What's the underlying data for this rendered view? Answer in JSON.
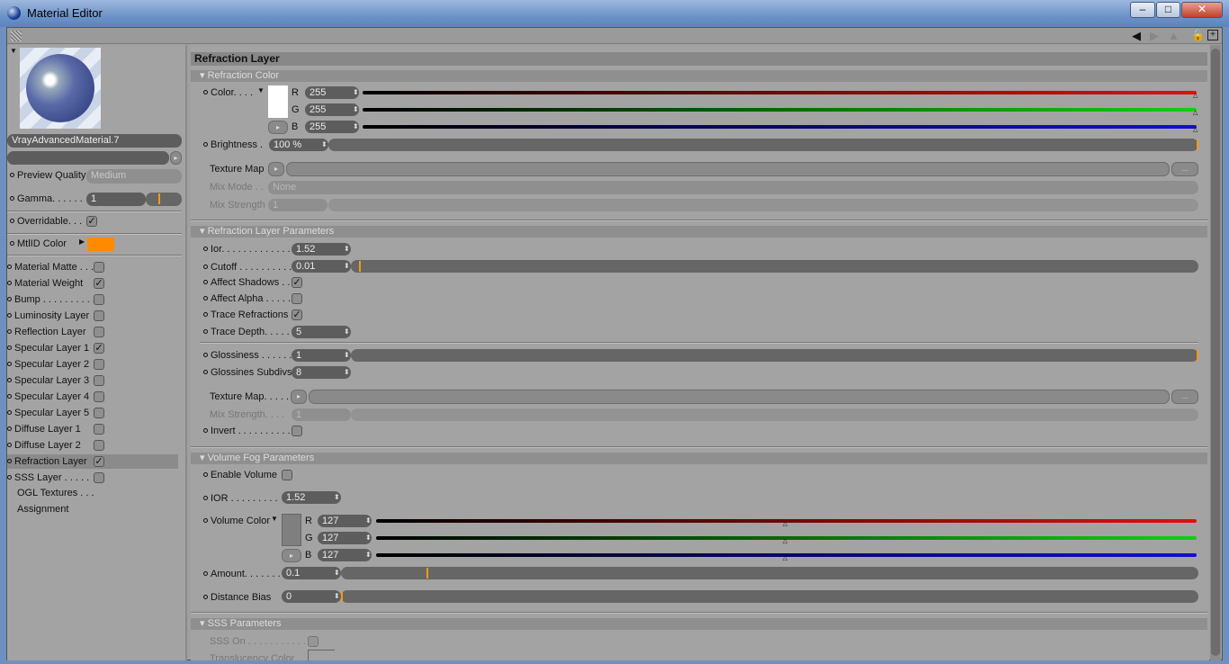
{
  "window": {
    "title": "Material Editor",
    "minimize": "–",
    "maximize": "□",
    "close": "✕"
  },
  "left": {
    "material_name": "VrayAdvancedMaterial.7",
    "preview_quality_label": "Preview Quality",
    "preview_quality_value": "Medium",
    "gamma_label": "Gamma. . . . . . ",
    "gamma_value": "1",
    "gamma_level": 0.5,
    "overridable_label": "Overridable. . . ",
    "overridable_checked": true,
    "mtlid_label": "MtlID Color",
    "mtlid_color": "#ff8a00",
    "channels": [
      {
        "label": "Material Matte . . .",
        "checked": false
      },
      {
        "label": "Material Weight",
        "checked": true
      },
      {
        "label": "Bump . . . . . . . . . . .",
        "checked": false
      },
      {
        "label": "Luminosity Layer",
        "checked": false
      },
      {
        "label": "Reflection Layer",
        "checked": false
      },
      {
        "label": "Specular Layer 1",
        "checked": true
      },
      {
        "label": "Specular Layer 2",
        "checked": false
      },
      {
        "label": "Specular Layer 3",
        "checked": false
      },
      {
        "label": "Specular Layer 4",
        "checked": false
      },
      {
        "label": "Specular Layer 5",
        "checked": false
      },
      {
        "label": "Diffuse Layer 1",
        "checked": false
      },
      {
        "label": "Diffuse Layer 2",
        "checked": false
      },
      {
        "label": "Refraction Layer",
        "checked": true,
        "selected": true
      },
      {
        "label": "SSS Layer . . . . .",
        "checked": false
      }
    ],
    "extra": [
      "OGL Textures . . .",
      "Assignment"
    ]
  },
  "main": {
    "title": "Refraction Layer",
    "refraction_color": {
      "header": "Refraction Color",
      "color_label": "Color. . . . ",
      "swatch": "#ffffff",
      "r": "255",
      "g": "255",
      "b": "255",
      "r_level": 1,
      "g_level": 1,
      "b_level": 1,
      "brightness_label": "Brightness  .",
      "brightness_value": "100 %",
      "brightness_level": 1,
      "texture_map_label": "Texture Map",
      "texture_more": "...",
      "mix_mode_label": "Mix Mode . .",
      "mix_mode_value": "None",
      "mix_strength_label": "Mix Strength",
      "mix_strength_value": "1"
    },
    "params": {
      "header": "Refraction Layer Parameters",
      "ior_label": "Ior. . . . . . . . . . . . .",
      "ior_value": "1.52",
      "cutoff_label": "Cutoff . . . . . . . . . . .",
      "cutoff_value": "0.01",
      "cutoff_level": 0.01,
      "affect_shadows_label": "Affect Shadows . .",
      "affect_shadows": true,
      "affect_alpha_label": "Affect Alpha . . . . .",
      "affect_alpha": false,
      "trace_refractions_label": "Trace Refractions",
      "trace_refractions": true,
      "trace_depth_label": "Trace Depth. . . . .",
      "trace_depth_value": "5",
      "glossiness_label": "Glossiness . . . . . .",
      "glossiness_value": "1",
      "glossiness_level": 1,
      "subdivs_label": "Glossines Subdivs",
      "subdivs_value": "8",
      "texture_map_label": "Texture Map. . . . .",
      "texture_more": "...",
      "mix_strength_label": "Mix Strength. . . .",
      "mix_strength_value": "1",
      "invert_label": "Invert . . . . . . . . . .",
      "invert": false
    },
    "fog": {
      "header": "Volume Fog Parameters",
      "enable_label": "Enable Volume",
      "enable": false,
      "ior_label": "IOR . . . . . . . . .",
      "ior_value": "1.52",
      "color_label": "Volume Color",
      "swatch": "#7f7f7f",
      "r": "127",
      "g": "127",
      "b": "127",
      "r_level": 0.5,
      "g_level": 0.5,
      "b_level": 0.5,
      "amount_label": "Amount. . . . . . .",
      "amount_value": "0.1",
      "amount_level": 0.1,
      "bias_label": "Distance Bias",
      "bias_value": "0",
      "bias_level": 0
    },
    "sss": {
      "header": "SSS Parameters",
      "sss_on_label": "SSS On . . . . . . . . . . . .",
      "sss_on": false,
      "translucency_label": "Translucency Color"
    }
  },
  "colors": {
    "red": "#e01010",
    "green": "#10d010",
    "blue": "#1010d0",
    "accent": "#f29a16"
  }
}
